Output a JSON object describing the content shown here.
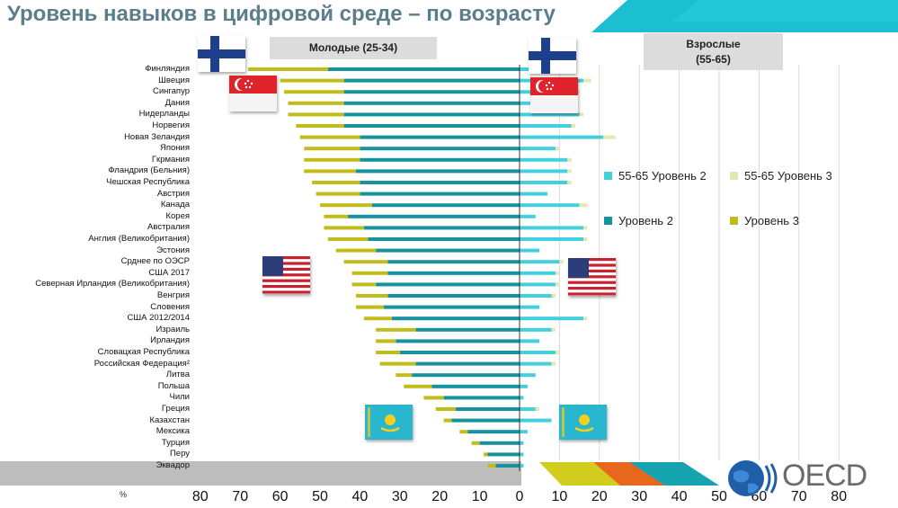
{
  "title": "Уровень навыков в цифровой среде – по возрасту",
  "headers": {
    "young": "Молодые (25-34)",
    "adults": "Взрослые\n(55-65)"
  },
  "axis_unit": "%",
  "logo": {
    "text": "OECD"
  },
  "colors": {
    "level2": "#16919e",
    "level3": "#c2bc1a",
    "old_level2": "#42d0de",
    "old_level3": "#e6e7b2",
    "band": "#17bccc",
    "title": "#5b7d8c"
  },
  "flags": [
    {
      "name": "finland-flag",
      "icon": "flag-finland"
    },
    {
      "name": "singapore-flag",
      "icon": "flag-singapore"
    },
    {
      "name": "usa-flag",
      "icon": "flag-usa"
    },
    {
      "name": "kazakhstan-flag",
      "icon": "flag-kazakhstan"
    }
  ],
  "chart_data": {
    "type": "bar",
    "orientation": "horizontal-diverging",
    "title": "Уровень навыков в цифровой среде – по возрасту",
    "xlabel": "%",
    "xlim_left": [
      0,
      80
    ],
    "xlim_right": [
      0,
      80
    ],
    "ticks": [
      "80",
      "70",
      "60",
      "50",
      "40",
      "30",
      "20",
      "10",
      "0",
      "10",
      "20",
      "30",
      "40",
      "50",
      "60",
      "70",
      "80"
    ],
    "legend": [
      {
        "key": "old_level2",
        "label": "55-65 Уровень 2"
      },
      {
        "key": "old_level3",
        "label": "55-65 Уровень 3"
      },
      {
        "key": "level2",
        "label": "Уровень 2"
      },
      {
        "key": "level3",
        "label": "Уровень 3"
      }
    ],
    "categories": [
      "Финляндия",
      "Швеция",
      "Сингапур",
      "Дания",
      "Нидерланды",
      "Норвегия",
      "Новая Зеландия",
      "Япония",
      "Гкрмания",
      "Фландрия (Бельния)",
      "Чешская Республика",
      "Австрия",
      "Канада",
      "Корея",
      "Австралия",
      "Англия (Великобритания)",
      "Эстония",
      "Срднее по ОЭСР",
      "США 2017",
      "Северная Ирландия (Великобритания)",
      "Венгрия",
      "Словения",
      "США 2012/2014",
      "Израиль",
      "Ирландия",
      "Словацкая Республика",
      "Российская Федерация²",
      "Литва",
      "Польша",
      "Чили",
      "Греция",
      "Казахстан",
      "Мексика",
      "Турция",
      "Перу",
      "Эквадор"
    ],
    "series": [
      {
        "name": "Уровень 2",
        "side": "young",
        "values": [
          48,
          44,
          44,
          44,
          44,
          44,
          40,
          40,
          40,
          41,
          40,
          40,
          37,
          43,
          39,
          38,
          36,
          33,
          33,
          36,
          33,
          34,
          32,
          26,
          31,
          30,
          26,
          27,
          22,
          19,
          16,
          17,
          13,
          10,
          8,
          6
        ]
      },
      {
        "name": "Уровень 3",
        "side": "young",
        "values": [
          20,
          16,
          15,
          14,
          14,
          12,
          15,
          14,
          14,
          13,
          12,
          11,
          13,
          6,
          10,
          10,
          10,
          11,
          9,
          6,
          8,
          7,
          7,
          10,
          5,
          6,
          9,
          4,
          7,
          5,
          5,
          2,
          2,
          2,
          1,
          2
        ]
      },
      {
        "name": "55-65 Уровень 2",
        "side": "adults",
        "values": [
          8,
          16,
          14,
          13,
          15,
          13,
          21,
          9,
          12,
          12,
          12,
          7,
          15,
          4,
          16,
          16,
          5,
          10,
          9,
          9,
          8,
          5,
          16,
          8,
          5,
          9,
          8,
          4,
          2,
          1,
          4,
          8,
          2,
          1,
          1,
          1
        ]
      },
      {
        "name": "55-65 Уровень 3",
        "side": "adults",
        "values": [
          2,
          2,
          1,
          1,
          1,
          1,
          3,
          1,
          1,
          1,
          1,
          0,
          2,
          0,
          1,
          1,
          0,
          1,
          1,
          1,
          1,
          0,
          1,
          1,
          0,
          1,
          1,
          0,
          0,
          0,
          1,
          0,
          0,
          0,
          0,
          0
        ]
      }
    ]
  }
}
